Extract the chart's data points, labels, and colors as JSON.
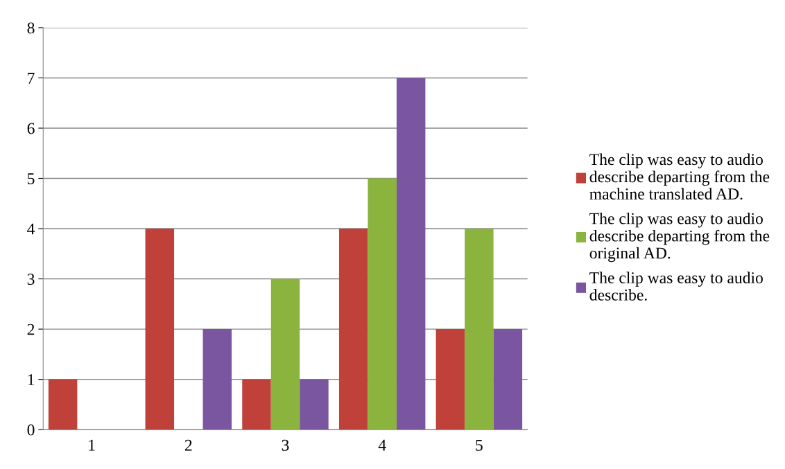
{
  "chart_data": {
    "type": "bar",
    "categories": [
      "1",
      "2",
      "3",
      "4",
      "5"
    ],
    "series": [
      {
        "name": "The clip was easy to audio describe departing from the machine translated AD.",
        "color": "#c0403a",
        "values": [
          1,
          4,
          1,
          4,
          2
        ]
      },
      {
        "name": "The clip was easy to audio describe departing from the original AD.",
        "color": "#8ab43e",
        "values": [
          0,
          0,
          3,
          5,
          4
        ]
      },
      {
        "name": "The clip was easy to audio describe.",
        "color": "#7a56a0",
        "values": [
          0,
          2,
          1,
          7,
          2
        ]
      }
    ],
    "ylim": [
      0,
      8
    ],
    "yticks": [
      0,
      1,
      2,
      3,
      4,
      5,
      6,
      7,
      8
    ],
    "grid": "y",
    "legend": "right"
  }
}
